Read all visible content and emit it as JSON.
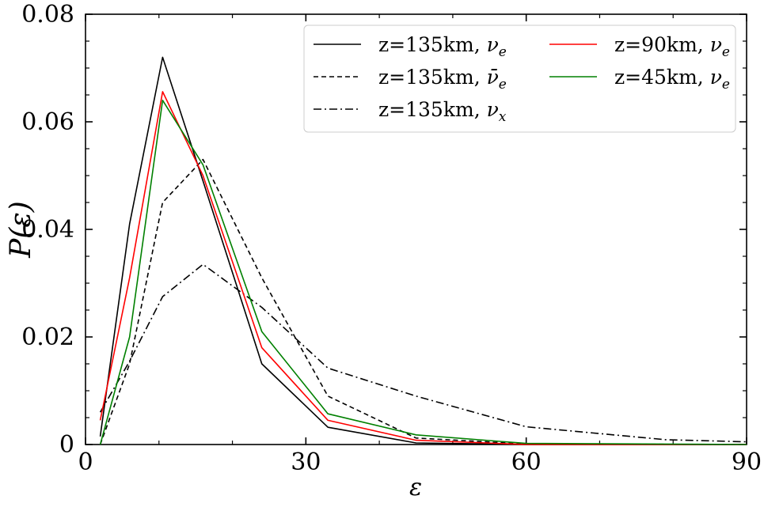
{
  "chart_data": {
    "type": "line",
    "title": "",
    "xlabel": "ε",
    "ylabel": "P(ε)",
    "xlim": [
      0,
      90
    ],
    "ylim": [
      0,
      0.08
    ],
    "x_ticks": [
      0,
      30,
      60,
      90
    ],
    "x_tick_labels": [
      "0",
      "30",
      "60",
      "90"
    ],
    "y_ticks": [
      0,
      0.02,
      0.04,
      0.06,
      0.08
    ],
    "y_tick_labels": [
      "0",
      "0.02",
      "0.04",
      "0.06",
      "0.08"
    ],
    "grid": false,
    "legend_position": "top-right",
    "legend_columns": 2,
    "series": [
      {
        "name": "z=135km, νe",
        "color": "#000000",
        "dash": "solid",
        "x": [
          2,
          6,
          10.5,
          16,
          24,
          33,
          45,
          60,
          90
        ],
        "y": [
          0.0015,
          0.041,
          0.072,
          0.049,
          0.015,
          0.0032,
          0.0003,
          0.0,
          0.0
        ]
      },
      {
        "name": "z=135km, ν̄e",
        "color": "#000000",
        "dash": "dashed",
        "x": [
          2,
          6,
          10.5,
          16,
          24,
          33,
          45,
          60,
          90
        ],
        "y": [
          0.0,
          0.015,
          0.045,
          0.053,
          0.031,
          0.009,
          0.0012,
          0.0001,
          0.0
        ]
      },
      {
        "name": "z=135km, νx",
        "color": "#000000",
        "dash": "dashdot",
        "x": [
          2,
          6,
          10.5,
          16,
          24,
          33,
          45,
          60,
          79,
          90
        ],
        "y": [
          0.006,
          0.0155,
          0.0275,
          0.0335,
          0.0255,
          0.0142,
          0.009,
          0.0033,
          0.0009,
          0.0005
        ]
      },
      {
        "name": "z=90km, νe",
        "color": "#ff0000",
        "dash": "solid",
        "x": [
          2,
          6,
          10.5,
          16,
          24,
          33,
          45,
          60,
          90
        ],
        "y": [
          0.0045,
          0.031,
          0.0656,
          0.05,
          0.018,
          0.0045,
          0.0008,
          0.0,
          0.0
        ]
      },
      {
        "name": "z=45km, νe",
        "color": "#008000",
        "dash": "solid",
        "x": [
          2,
          6,
          10.5,
          16,
          24,
          33,
          45,
          60,
          90
        ],
        "y": [
          0.0,
          0.02,
          0.064,
          0.052,
          0.021,
          0.0057,
          0.0018,
          0.0002,
          0.0
        ]
      }
    ],
    "legend_items": [
      {
        "base": "z=135km, ",
        "sym": "ν",
        "bar": false,
        "sub": "e"
      },
      {
        "base": "z=135km, ",
        "sym": "ν",
        "bar": true,
        "sub": "e"
      },
      {
        "base": "z=135km, ",
        "sym": "ν",
        "bar": false,
        "sub": "x"
      },
      {
        "base": "z=90km, ",
        "sym": "ν",
        "bar": false,
        "sub": "e"
      },
      {
        "base": "z=45km, ",
        "sym": "ν",
        "bar": false,
        "sub": "e"
      }
    ]
  }
}
